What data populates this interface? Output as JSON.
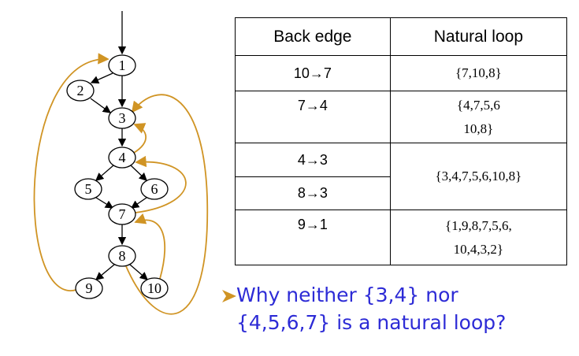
{
  "graph": {
    "nodes": [
      {
        "label": "1"
      },
      {
        "label": "2"
      },
      {
        "label": "3"
      },
      {
        "label": "4"
      },
      {
        "label": "5"
      },
      {
        "label": "6"
      },
      {
        "label": "7"
      },
      {
        "label": "8"
      },
      {
        "label": "9"
      },
      {
        "label": "10"
      }
    ]
  },
  "table": {
    "header": [
      "Back edge",
      "Natural loop"
    ],
    "rows": [
      {
        "edges": [
          "10→7"
        ],
        "loop": [
          "{7,10,8}"
        ]
      },
      {
        "edges": [
          "7→4"
        ],
        "loop": [
          "{4,7,5,6",
          "10,8}"
        ]
      },
      {
        "edges": [
          "4→3",
          "8→3"
        ],
        "loop": [
          "{3,4,7,5,6,10,8}"
        ]
      },
      {
        "edges": [
          "9→1"
        ],
        "loop": [
          "{1,9,8,7,5,6,",
          "10,4,3,2}"
        ]
      }
    ]
  },
  "question": [
    "Why neither {3,4} nor",
    "{4,5,6,7} is a natural loop?"
  ]
}
